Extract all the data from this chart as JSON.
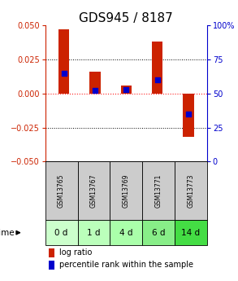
{
  "title": "GDS945 / 8187",
  "samples": [
    "GSM13765",
    "GSM13767",
    "GSM13769",
    "GSM13771",
    "GSM13773"
  ],
  "time_labels": [
    "0 d",
    "1 d",
    "4 d",
    "6 d",
    "14 d"
  ],
  "log_ratios": [
    0.047,
    0.016,
    0.006,
    0.038,
    -0.032
  ],
  "percentile_ranks": [
    65,
    52,
    53,
    60,
    35
  ],
  "bar_color": "#cc2200",
  "dot_color": "#0000cc",
  "ylim_left": [
    -0.05,
    0.05
  ],
  "ylim_right": [
    0,
    100
  ],
  "yticks_left": [
    -0.05,
    -0.025,
    0,
    0.025,
    0.05
  ],
  "yticks_right": [
    0,
    25,
    50,
    75,
    100
  ],
  "title_fontsize": 11,
  "tick_fontsize": 7,
  "label_fontsize": 7,
  "sample_bg_color": "#cccccc",
  "time_bg_colors": [
    "#ccffcc",
    "#bbffbb",
    "#aaffaa",
    "#88ee88",
    "#44dd44"
  ],
  "bar_width": 0.35,
  "dot_size": 18
}
